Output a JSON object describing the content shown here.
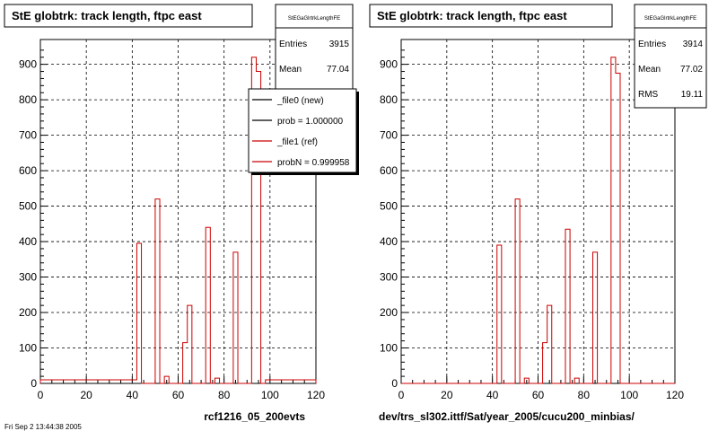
{
  "footer_text": "Fri Sep  2 13:44:38 2005",
  "chart_data": [
    {
      "type": "histogram",
      "title": "StE globtrk: track length, ftpc east",
      "xlabel": "rcf1216_05_200evts",
      "xlim": [
        0,
        120
      ],
      "ylim": [
        0,
        970
      ],
      "x_ticks": [
        0,
        20,
        40,
        60,
        80,
        100,
        120
      ],
      "y_ticks": [
        0,
        100,
        200,
        300,
        400,
        500,
        600,
        700,
        800,
        900
      ],
      "grid": true,
      "stats": {
        "name": "StEGaGlrtrkLengthFE",
        "entries_label": "Entries",
        "entries": "3915",
        "mean_label": "Mean",
        "mean": "77.04"
      },
      "legend": {
        "placement": "top-right",
        "entries": [
          {
            "label": "_file0 (new)",
            "color": "#000000"
          },
          {
            "label": "prob = 1.000000",
            "color": "#000000"
          },
          {
            "label": "_file1 (ref)",
            "color": "#cc0000"
          },
          {
            "label": "probN = 0.999958",
            "color": "#cc0000"
          }
        ]
      },
      "series": [
        {
          "color": "#cc0000",
          "bin_width": 2,
          "x": [
            0,
            2,
            4,
            6,
            8,
            10,
            12,
            14,
            16,
            18,
            20,
            22,
            24,
            26,
            28,
            30,
            32,
            34,
            36,
            38,
            40,
            42,
            44,
            46,
            48,
            50,
            52,
            54,
            56,
            58,
            60,
            62,
            64,
            66,
            68,
            70,
            72,
            74,
            76,
            78,
            80,
            82,
            84,
            86,
            88,
            90,
            92,
            94,
            96,
            98,
            100,
            102,
            104,
            106,
            108,
            110,
            112,
            114,
            116,
            118
          ],
          "values": [
            10,
            10,
            10,
            10,
            10,
            10,
            10,
            10,
            10,
            10,
            10,
            10,
            10,
            10,
            10,
            10,
            10,
            10,
            10,
            10,
            10,
            395,
            0,
            0,
            0,
            520,
            0,
            20,
            0,
            0,
            0,
            115,
            220,
            0,
            0,
            0,
            440,
            0,
            15,
            0,
            0,
            0,
            370,
            0,
            0,
            0,
            920,
            880,
            0,
            10,
            10,
            10,
            10,
            10,
            10,
            10,
            10,
            10,
            10,
            10
          ]
        }
      ]
    },
    {
      "type": "histogram",
      "title": "StE globtrk: track length, ftpc east",
      "xlabel": "dev/trs_sl302.ittf/Sat/year_2005/cucu200_minbias/",
      "xlim": [
        0,
        120
      ],
      "ylim": [
        0,
        970
      ],
      "x_ticks": [
        0,
        20,
        40,
        60,
        80,
        100,
        120
      ],
      "y_ticks": [
        0,
        100,
        200,
        300,
        400,
        500,
        600,
        700,
        800,
        900
      ],
      "grid": true,
      "stats": {
        "name": "StEGaGlrtrkLengthFE",
        "entries_label": "Entries",
        "entries": "3914",
        "mean_label": "Mean",
        "mean": "77.02",
        "rms_label": "RMS",
        "rms": "19.11"
      },
      "series": [
        {
          "color": "#cc0000",
          "bin_width": 2,
          "x": [
            0,
            2,
            4,
            6,
            8,
            10,
            12,
            14,
            16,
            18,
            20,
            22,
            24,
            26,
            28,
            30,
            32,
            34,
            36,
            38,
            40,
            42,
            44,
            46,
            48,
            50,
            52,
            54,
            56,
            58,
            60,
            62,
            64,
            66,
            68,
            70,
            72,
            74,
            76,
            78,
            80,
            82,
            84,
            86,
            88,
            90,
            92,
            94,
            96,
            98,
            100,
            102,
            104,
            106,
            108,
            110,
            112,
            114,
            116,
            118
          ],
          "values": [
            0,
            0,
            0,
            0,
            0,
            0,
            0,
            0,
            0,
            0,
            0,
            0,
            0,
            0,
            0,
            0,
            0,
            0,
            0,
            0,
            0,
            390,
            0,
            0,
            0,
            520,
            0,
            15,
            0,
            0,
            0,
            115,
            220,
            0,
            0,
            0,
            435,
            0,
            15,
            0,
            0,
            0,
            370,
            0,
            0,
            0,
            920,
            875,
            0,
            0,
            0,
            0,
            0,
            0,
            0,
            0,
            0,
            0,
            0,
            0
          ]
        }
      ]
    }
  ]
}
